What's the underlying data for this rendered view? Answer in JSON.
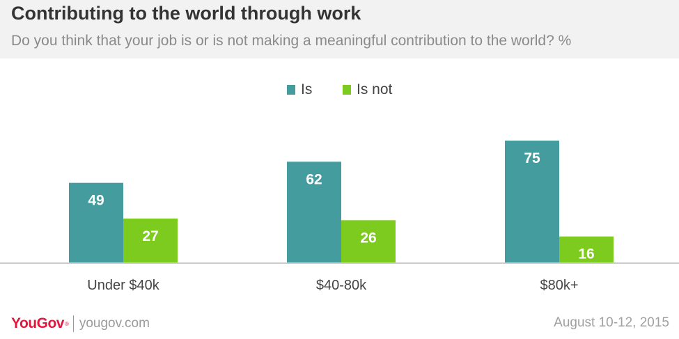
{
  "header": {
    "title": "Contributing to the world through work",
    "subtitle": "Do you think that your job is or is not making a meaningful contribution to the world? %"
  },
  "colors": {
    "is": "#449c9f",
    "is_not": "#7ecb20",
    "axis": "#cccccc",
    "header_bg": "#f2f2f2"
  },
  "chart_data": {
    "type": "bar",
    "categories": [
      "Under $40k",
      "$40-80k",
      "$80k+"
    ],
    "series": [
      {
        "name": "Is",
        "values": [
          49,
          62,
          75
        ]
      },
      {
        "name": "Is not",
        "values": [
          27,
          26,
          16
        ]
      }
    ],
    "ylim": [
      0,
      80
    ],
    "grid": false,
    "legend_position": "top-center"
  },
  "footer": {
    "logo": "YouGov",
    "site": "yougov.com",
    "date": "August 10-12, 2015"
  }
}
